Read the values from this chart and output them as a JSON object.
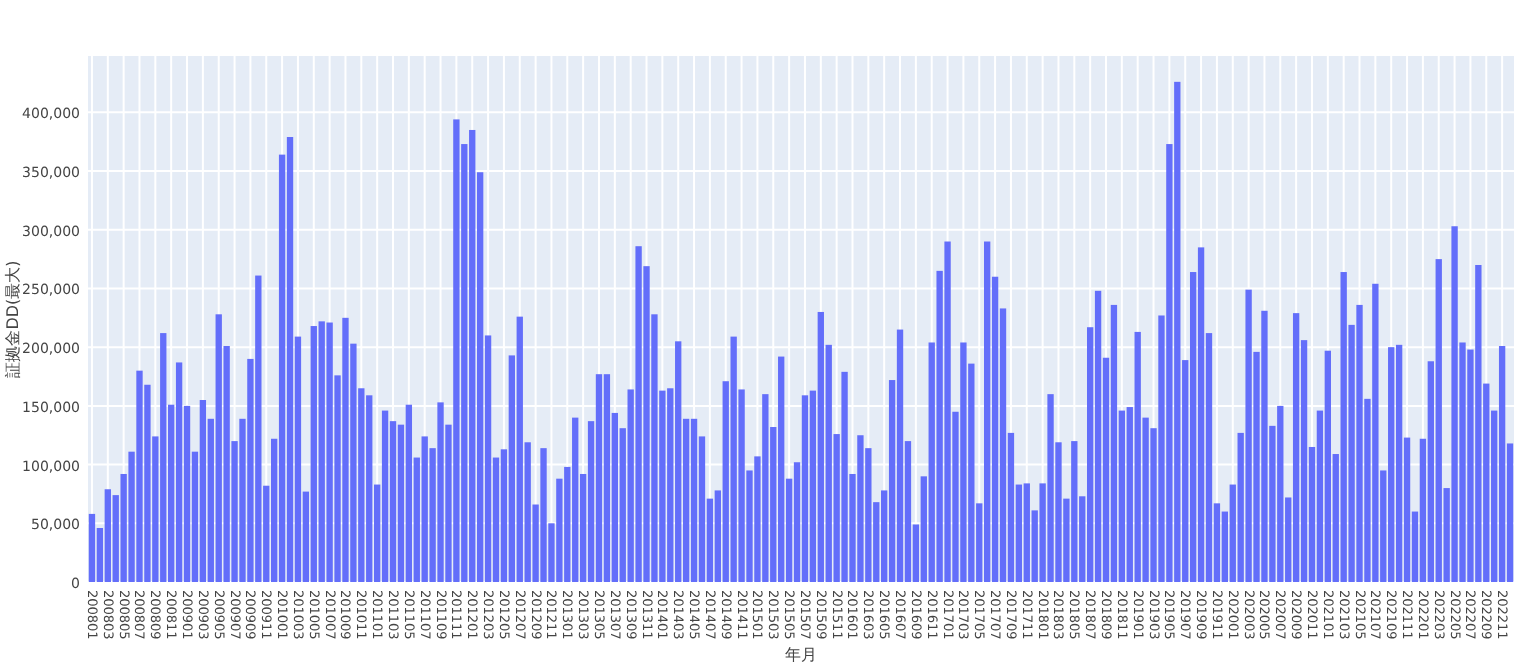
{
  "chart_data": {
    "type": "bar",
    "xlabel": "年月",
    "ylabel": "証拠金DD(最大)",
    "color": "#636efa",
    "grid": true,
    "ylim": [
      0,
      448000
    ],
    "yticks": [
      {
        "value": 0,
        "label": "0"
      },
      {
        "value": 50000,
        "label": "50,000"
      },
      {
        "value": 100000,
        "label": "100,000"
      },
      {
        "value": 150000,
        "label": "150,000"
      },
      {
        "value": 200000,
        "label": "200,000"
      },
      {
        "value": 250000,
        "label": "250,000"
      },
      {
        "value": 300000,
        "label": "300,000"
      },
      {
        "value": 350000,
        "label": "350,000"
      },
      {
        "value": 400000,
        "label": "400,000"
      }
    ],
    "categories": [
      "200801",
      null,
      "200803",
      null,
      "200805",
      null,
      "200807",
      null,
      "200809",
      null,
      "200811",
      null,
      "200901",
      null,
      "200903",
      null,
      "200905",
      null,
      "200907",
      null,
      "200909",
      null,
      "200911",
      null,
      "201001",
      null,
      "201003",
      null,
      "201005",
      null,
      "201007",
      null,
      "201009",
      null,
      "201011",
      null,
      "201101",
      null,
      "201103",
      null,
      "201105",
      null,
      "201107",
      null,
      "201109",
      null,
      "201111",
      null,
      "201201",
      null,
      "201203",
      null,
      "201205",
      null,
      "201207",
      null,
      "201209",
      null,
      "201211",
      null,
      "201301",
      null,
      "201303",
      null,
      "201305",
      null,
      "201307",
      null,
      "201309",
      null,
      "201311",
      null,
      "201401",
      null,
      "201403",
      null,
      "201405",
      null,
      "201407",
      null,
      "201409",
      null,
      "201411",
      null,
      "201501",
      null,
      "201503",
      null,
      "201505",
      null,
      "201507",
      null,
      "201509",
      null,
      "201511",
      null,
      "201601",
      null,
      "201603",
      null,
      "201605",
      null,
      "201607",
      null,
      "201609",
      null,
      "201611",
      null,
      "201701",
      null,
      "201703",
      null,
      "201705",
      null,
      "201707",
      null,
      "201709",
      null,
      "201711",
      null,
      "201801",
      null,
      "201803",
      null,
      "201805",
      null,
      "201807",
      null,
      "201809",
      null,
      "201811",
      null,
      "201901",
      null,
      "201903",
      null,
      "201905",
      null,
      "201907",
      null,
      "201909",
      null,
      "201911",
      null,
      "202001",
      null,
      "202003",
      null,
      "202005",
      null,
      "202007",
      null,
      "202009",
      null,
      "202011",
      null,
      "202101",
      null,
      "202103",
      null,
      "202105",
      null,
      "202107",
      null,
      "202109",
      null,
      "202111",
      null,
      "202201",
      null,
      "202203",
      null,
      "202205",
      null,
      "202207",
      null,
      "202209",
      null,
      "202211",
      null
    ],
    "values": [
      58000,
      46000,
      79000,
      74000,
      92000,
      111000,
      180000,
      168000,
      124000,
      212000,
      151000,
      187000,
      150000,
      111000,
      155000,
      139000,
      228000,
      201000,
      120000,
      139000,
      190000,
      261000,
      82000,
      122000,
      364000,
      379000,
      209000,
      77000,
      218000,
      222000,
      221000,
      176000,
      225000,
      203000,
      165000,
      159000,
      83000,
      146000,
      137000,
      134000,
      151000,
      106000,
      124000,
      114000,
      153000,
      134000,
      394000,
      373000,
      385000,
      349000,
      210000,
      106000,
      113000,
      193000,
      226000,
      119000,
      66000,
      114000,
      50000,
      88000,
      98000,
      140000,
      92000,
      137000,
      177000,
      177000,
      144000,
      131000,
      164000,
      286000,
      269000,
      228000,
      163000,
      165000,
      205000,
      139000,
      139000,
      124000,
      71000,
      78000,
      171000,
      209000,
      164000,
      95000,
      107000,
      160000,
      132000,
      192000,
      88000,
      102000,
      159000,
      163000,
      230000,
      202000,
      126000,
      179000,
      92000,
      125000,
      114000,
      68000,
      78000,
      172000,
      215000,
      120000,
      49000,
      90000,
      204000,
      265000,
      290000,
      145000,
      204000,
      186000,
      67000,
      290000,
      260000,
      233000,
      127000,
      83000,
      84000,
      61000,
      84000,
      160000,
      119000,
      71000,
      120000,
      73000,
      217000,
      248000,
      191000,
      236000,
      146000,
      149000,
      213000,
      140000,
      131000,
      227000,
      373000,
      426000,
      189000,
      264000,
      285000,
      212000,
      67000,
      60000,
      83000,
      127000,
      249000,
      196000,
      231000,
      133000,
      150000,
      72000,
      229000,
      206000,
      115000,
      146000,
      197000,
      109000,
      264000,
      219000,
      236000,
      156000,
      254000,
      95000,
      200000,
      202000,
      123000,
      60000,
      122000,
      188000,
      275000,
      80000,
      303000,
      204000,
      198000,
      270000,
      169000,
      146000,
      201000,
      118000
    ]
  }
}
